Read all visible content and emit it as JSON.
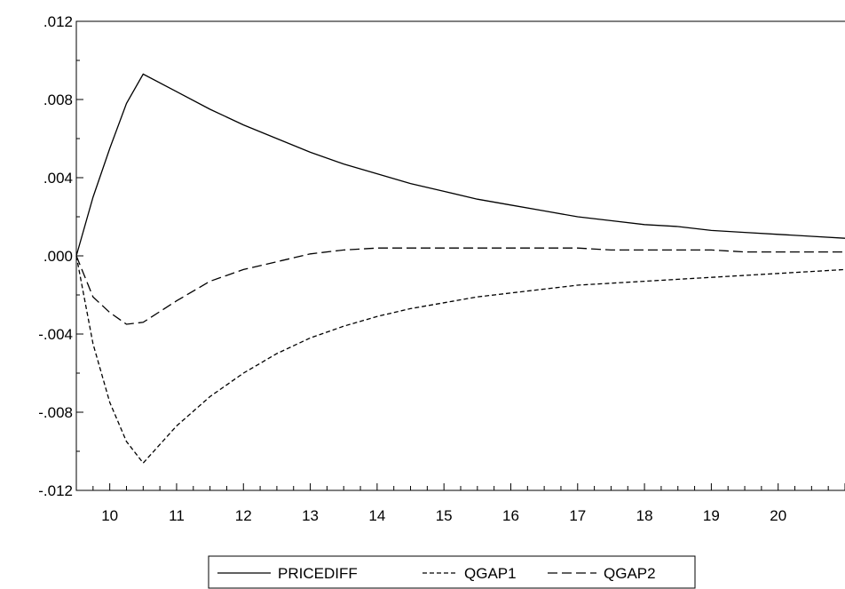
{
  "chart_data": {
    "type": "line",
    "title": "",
    "xlabel": "",
    "ylabel": "",
    "x": [
      9.5,
      9.75,
      10,
      10.25,
      10.5,
      11,
      11.5,
      12,
      12.5,
      13,
      13.5,
      14,
      14.5,
      15,
      15.5,
      16,
      16.5,
      17,
      17.5,
      18,
      18.5,
      19,
      19.5,
      20,
      20.5,
      21
    ],
    "xlim": [
      9.5,
      21
    ],
    "ylim": [
      -0.012,
      0.012
    ],
    "x_ticks": [
      10,
      11,
      12,
      13,
      14,
      15,
      16,
      17,
      18,
      19,
      20
    ],
    "x_tick_labels": [
      "10",
      "11",
      "12",
      "13",
      "14",
      "15",
      "16",
      "17",
      "18",
      "19",
      "20"
    ],
    "y_ticks": [
      0.012,
      0.008,
      0.004,
      0.0,
      -0.004,
      -0.008,
      -0.012
    ],
    "y_tick_labels": [
      ".012",
      ".008",
      ".004",
      ".000",
      "-.004",
      "-.008",
      "-.012"
    ],
    "grid": false,
    "legend_position": "bottom",
    "series": [
      {
        "name": "PRICEDIFF",
        "style": "solid",
        "color": "#000000",
        "values": [
          0.0,
          0.003,
          0.0055,
          0.0078,
          0.0093,
          0.0084,
          0.0075,
          0.0067,
          0.006,
          0.0053,
          0.0047,
          0.0042,
          0.0037,
          0.0033,
          0.0029,
          0.0026,
          0.0023,
          0.002,
          0.0018,
          0.0016,
          0.0015,
          0.0013,
          0.0012,
          0.0011,
          0.001,
          0.0009
        ]
      },
      {
        "name": "QGAP1",
        "style": "short-dash",
        "color": "#000000",
        "values": [
          0.0,
          -0.0045,
          -0.0075,
          -0.0095,
          -0.0106,
          -0.0087,
          -0.0072,
          -0.006,
          -0.005,
          -0.0042,
          -0.0036,
          -0.0031,
          -0.0027,
          -0.0024,
          -0.0021,
          -0.0019,
          -0.0017,
          -0.0015,
          -0.0014,
          -0.0013,
          -0.0012,
          -0.0011,
          -0.001,
          -0.0009,
          -0.0008,
          -0.0007
        ]
      },
      {
        "name": "QGAP2",
        "style": "long-dash",
        "color": "#000000",
        "values": [
          0.0,
          -0.0021,
          -0.0029,
          -0.0035,
          -0.0034,
          -0.0023,
          -0.0013,
          -0.0007,
          -0.0003,
          0.0001,
          0.0003,
          0.0004,
          0.0004,
          0.0004,
          0.0004,
          0.0004,
          0.0004,
          0.0004,
          0.0003,
          0.0003,
          0.0003,
          0.0003,
          0.0002,
          0.0002,
          0.0002,
          0.0002
        ]
      }
    ]
  }
}
